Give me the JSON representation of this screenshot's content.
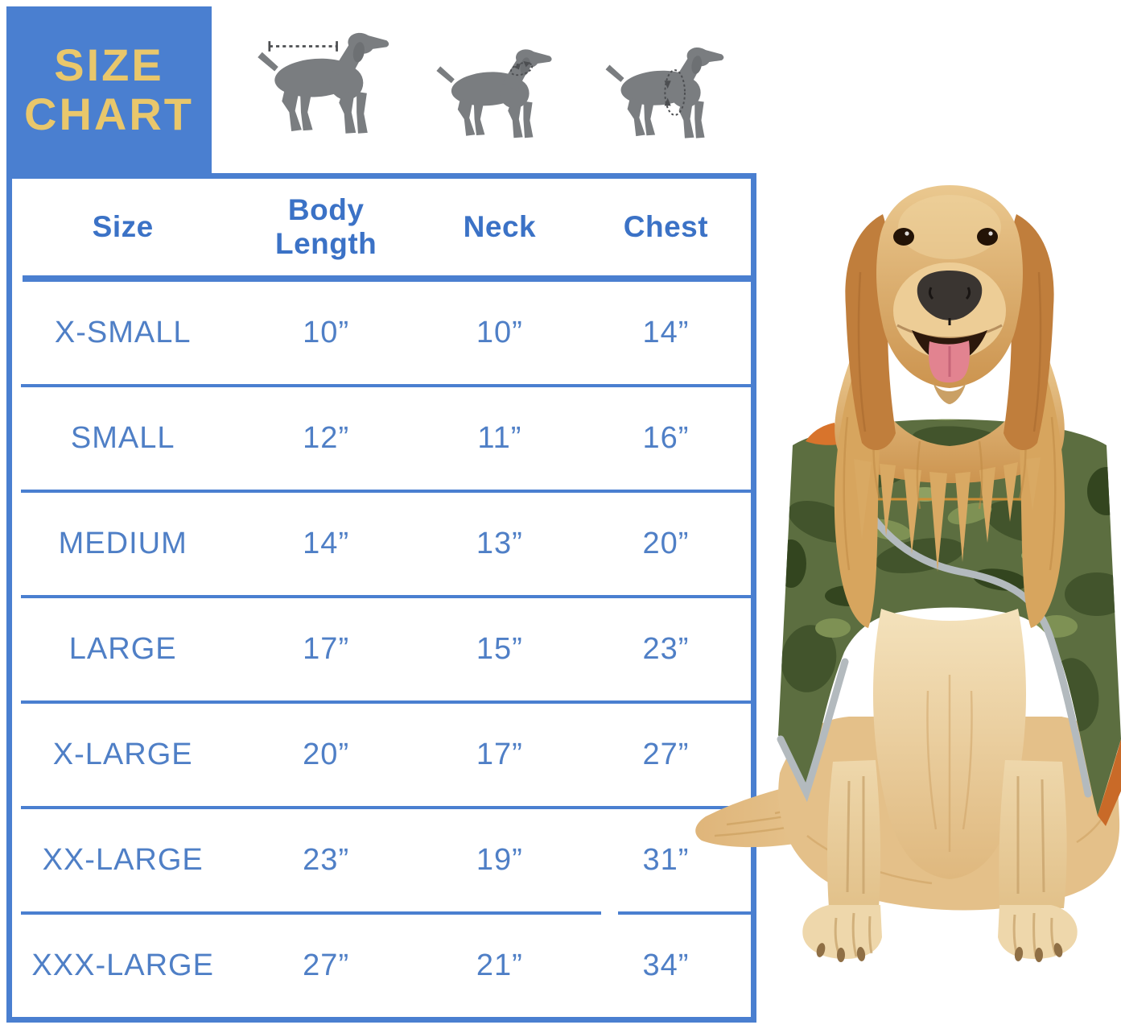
{
  "header": {
    "title_line1": "SIZE",
    "title_line2": "CHART"
  },
  "icons": [
    {
      "name": "body-length-dog-icon",
      "measure": "body length"
    },
    {
      "name": "neck-dog-icon",
      "measure": "neck girth"
    },
    {
      "name": "chest-dog-icon",
      "measure": "chest girth"
    }
  ],
  "chart_data": {
    "type": "table",
    "title": "SIZE CHART",
    "columns": [
      "Size",
      "Body Length",
      "Neck",
      "Chest"
    ],
    "rows": [
      [
        "X-SMALL",
        "10”",
        "10”",
        "14”"
      ],
      [
        "SMALL",
        "12”",
        "11”",
        "16”"
      ],
      [
        "MEDIUM",
        "14”",
        "13”",
        "20”"
      ],
      [
        "LARGE",
        "17”",
        "15”",
        "23”"
      ],
      [
        "X-LARGE",
        "20”",
        "17”",
        "27”"
      ],
      [
        "XX-LARGE",
        "23”",
        "19”",
        "31”"
      ],
      [
        "XXX-LARGE",
        "27”",
        "21”",
        "34”"
      ]
    ]
  },
  "photo": {
    "description": "golden retriever sitting, wearing green camouflage dog vest with reflective trim"
  },
  "colors": {
    "blue": "#4a7fd0",
    "head_blue": "#3b72c6",
    "row_blue": "#4f7fc6",
    "gold": "#e9c76b",
    "icon_gray": "#7a7d80",
    "annotation_gray": "#4c4e51",
    "camo_green": "#5c6e40",
    "trim_gray": "#b3babe",
    "patch_orange": "#cf8f35"
  }
}
